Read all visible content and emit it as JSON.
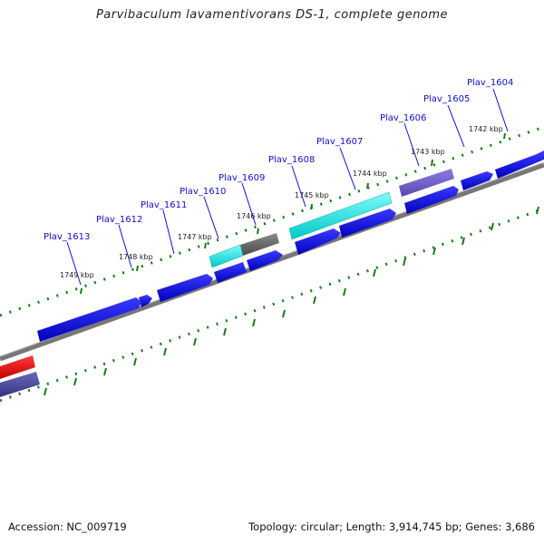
{
  "header": {
    "title": "Parvibaculum lavamentivorans DS-1, complete genome"
  },
  "footer": {
    "accession": "Accession: NC_009719",
    "summary": "Topology: circular; Length: 3,914,745 bp; Genes: 3,686"
  },
  "colors": {
    "background": "#ffffff",
    "label_text": "#1010cc",
    "gene_blue": "#1010dd",
    "gene_cyan": "#00e5e5",
    "gene_gray": "#666666",
    "gene_purple": "#6a5acd",
    "gene_red": "#ee1111",
    "gene_navy": "#4a4a9a",
    "backbone": "#888888",
    "tick_marks": "#1a7a1a"
  },
  "gene_labels": [
    "Plav_1604",
    "Plav_1605",
    "Plav_1606",
    "Plav_1607",
    "Plav_1608",
    "Plav_1609",
    "Plav_1610",
    "Plav_1611",
    "Plav_1612",
    "Plav_1613"
  ],
  "kbp_ticks": [
    "1742 kbp",
    "1743 kbp",
    "1744 kbp",
    "1745 kbp",
    "1746 kbp",
    "1747 kbp",
    "1748 kbp",
    "1749 kbp"
  ]
}
